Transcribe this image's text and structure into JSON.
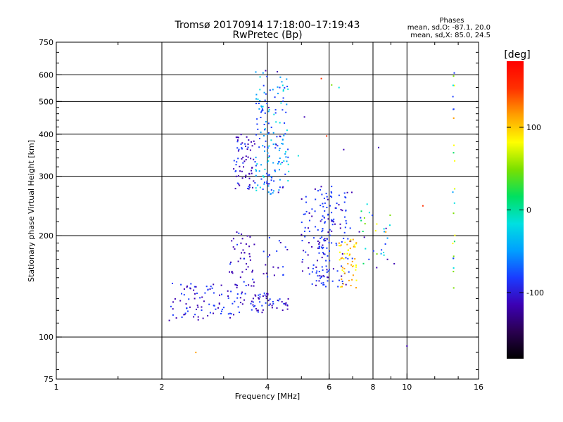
{
  "header": {
    "title_line1": "Tromsø 20170914 17:18:00–17:19:43",
    "title_line2": "RwPretec (Bp)",
    "phases_title": "Phases",
    "phases_line1": "mean, sd,O: -87.1, 20.0",
    "phases_line2": "mean, sd,X:  85.0, 24.5"
  },
  "colorbar": {
    "unit_label": "[deg]",
    "ticks": [
      "100",
      "0",
      "-100"
    ],
    "tick_values": [
      100,
      0,
      -100
    ],
    "range": [
      -180,
      180
    ],
    "colors": [
      "#000000",
      "#2a0050",
      "#3c00b4",
      "#1a3cff",
      "#00a0ff",
      "#00e0e0",
      "#00e060",
      "#7ae000",
      "#ffff00",
      "#ffa000",
      "#ff3000",
      "#ff0000"
    ]
  },
  "chart_data": {
    "type": "scatter",
    "title": "Tromsø 20170914 17:18:00–17:19:43",
    "subtitle": "RwPretec (Bp)",
    "xlabel": "Frequency [MHz]",
    "ylabel": "Stationary phase Virtual Height [km]",
    "x_scale": "log",
    "y_scale": "log",
    "xlim": [
      1,
      16
    ],
    "ylim": [
      75,
      750
    ],
    "x_ticks": [
      "1",
      "2",
      "4",
      "6",
      "8",
      "10",
      "16"
    ],
    "x_tick_values": [
      1,
      2,
      4,
      6,
      8,
      10,
      16
    ],
    "y_ticks": [
      "75",
      "100",
      "200",
      "300",
      "400",
      "500",
      "600",
      "750"
    ],
    "y_tick_values": [
      75,
      100,
      200,
      300,
      400,
      500,
      600,
      750
    ],
    "x_gridlines": [
      2,
      4,
      6,
      8,
      10
    ],
    "y_gridlines": [
      100,
      200,
      300,
      400,
      500,
      600
    ],
    "grid": true,
    "color_encodes": "phase [deg]",
    "clusters": [
      {
        "f_range": [
          2.1,
          3.4
        ],
        "h_range": [
          112,
          145
        ],
        "phase_range": [
          -115,
          -85
        ],
        "count": 90
      },
      {
        "f_range": [
          3.1,
          3.7
        ],
        "h_range": [
          140,
          210
        ],
        "phase_range": [
          -120,
          -90
        ],
        "count": 50
      },
      {
        "f_range": [
          3.3,
          4.6
        ],
        "h_range": [
          118,
          135
        ],
        "phase_range": [
          -115,
          -90
        ],
        "count": 60
      },
      {
        "f_range": [
          3.2,
          3.7
        ],
        "h_range": [
          275,
          400
        ],
        "phase_range": [
          -120,
          -90
        ],
        "count": 70
      },
      {
        "f_range": [
          3.7,
          4.6
        ],
        "h_range": [
          265,
          620
        ],
        "phase_range": [
          -100,
          -20
        ],
        "count": 170
      },
      {
        "f_range": [
          3.9,
          4.6
        ],
        "h_range": [
          150,
          200
        ],
        "phase_range": [
          -110,
          -85
        ],
        "count": 20
      },
      {
        "f_range": [
          5.0,
          6.1
        ],
        "h_range": [
          140,
          280
        ],
        "phase_range": [
          -115,
          -75
        ],
        "count": 100
      },
      {
        "f_range": [
          5.6,
          7.0
        ],
        "h_range": [
          140,
          270
        ],
        "phase_range": [
          -110,
          -70
        ],
        "count": 90
      },
      {
        "f_range": [
          6.4,
          7.2
        ],
        "h_range": [
          140,
          195
        ],
        "phase_range": [
          85,
          115
        ],
        "count": 50
      },
      {
        "f_range": [
          7.3,
          9.0
        ],
        "h_range": [
          160,
          250
        ],
        "phase_range": [
          -110,
          110
        ],
        "count": 30
      },
      {
        "f_range": [
          13.5,
          13.7
        ],
        "h_range": [
          135,
          610
        ],
        "phase_range": [
          -100,
          110
        ],
        "count": 25
      }
    ],
    "points": [
      {
        "x": 2.1,
        "y": 112,
        "phase": -100
      },
      {
        "x": 2.5,
        "y": 90,
        "phase": 110
      },
      {
        "x": 10.0,
        "y": 94,
        "phase": -100
      },
      {
        "x": 11.1,
        "y": 245,
        "phase": 160
      },
      {
        "x": 8.3,
        "y": 365,
        "phase": -100
      },
      {
        "x": 6.1,
        "y": 560,
        "phase": 40
      },
      {
        "x": 6.4,
        "y": 550,
        "phase": -10
      },
      {
        "x": 5.7,
        "y": 585,
        "phase": 150
      },
      {
        "x": 5.9,
        "y": 395,
        "phase": 150
      },
      {
        "x": 5.1,
        "y": 450,
        "phase": -100
      },
      {
        "x": 4.9,
        "y": 345,
        "phase": -20
      },
      {
        "x": 6.6,
        "y": 360,
        "phase": -110
      },
      {
        "x": 8.7,
        "y": 205,
        "phase": 110
      },
      {
        "x": 8.8,
        "y": 170,
        "phase": -100
      },
      {
        "x": 9.2,
        "y": 165,
        "phase": -110
      }
    ]
  }
}
